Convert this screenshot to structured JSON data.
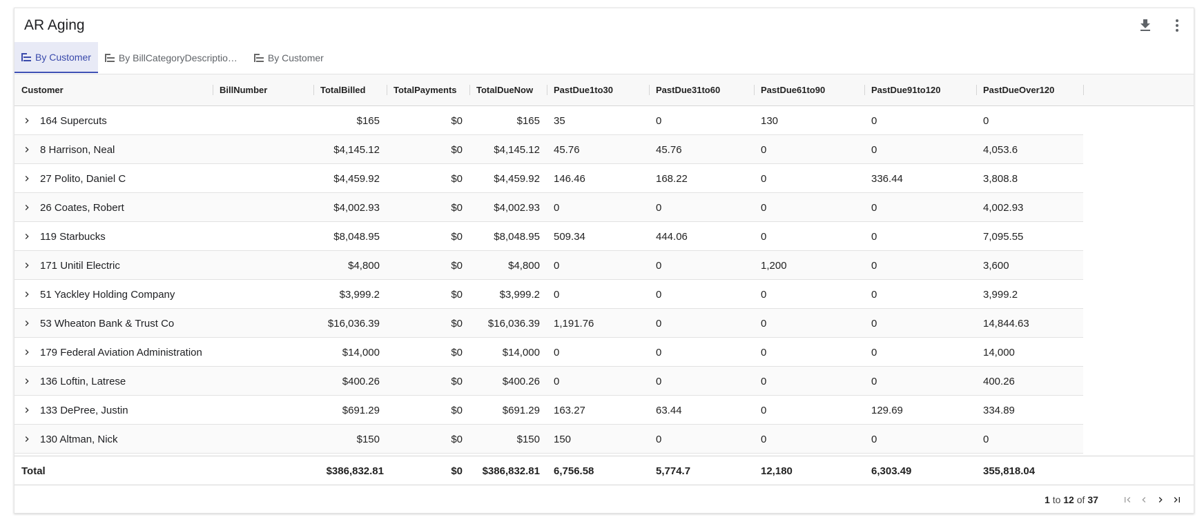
{
  "app": {
    "title": "AR Aging"
  },
  "icons": {
    "download": "download-icon",
    "more": "more-vert-icon",
    "tab": "tree-list-icon",
    "expand": "chevron-right-icon"
  },
  "tabs": [
    {
      "label": "By Customer",
      "active": true
    },
    {
      "label": "By BillCategoryDescription…",
      "active": false
    },
    {
      "label": "By Customer",
      "active": false
    }
  ],
  "columns": [
    "Customer",
    "BillNumber",
    "TotalBilled",
    "TotalPayments",
    "TotalDueNow",
    "PastDue1to30",
    "PastDue31to60",
    "PastDue61to90",
    "PastDue91to120",
    "PastDueOver120"
  ],
  "rows": [
    {
      "customer": "164 Supercuts",
      "billed": "$165",
      "payments": "$0",
      "due_now": "$165",
      "p1_30": "35",
      "p31_60": "0",
      "p61_90": "130",
      "p91_120": "0",
      "over120": "0"
    },
    {
      "customer": "8 Harrison, Neal",
      "billed": "$4,145.12",
      "payments": "$0",
      "due_now": "$4,145.12",
      "p1_30": "45.76",
      "p31_60": "45.76",
      "p61_90": "0",
      "p91_120": "0",
      "over120": "4,053.6"
    },
    {
      "customer": "27 Polito, Daniel C",
      "billed": "$4,459.92",
      "payments": "$0",
      "due_now": "$4,459.92",
      "p1_30": "146.46",
      "p31_60": "168.22",
      "p61_90": "0",
      "p91_120": "336.44",
      "over120": "3,808.8"
    },
    {
      "customer": "26 Coates, Robert",
      "billed": "$4,002.93",
      "payments": "$0",
      "due_now": "$4,002.93",
      "p1_30": "0",
      "p31_60": "0",
      "p61_90": "0",
      "p91_120": "0",
      "over120": "4,002.93"
    },
    {
      "customer": "119 Starbucks",
      "billed": "$8,048.95",
      "payments": "$0",
      "due_now": "$8,048.95",
      "p1_30": "509.34",
      "p31_60": "444.06",
      "p61_90": "0",
      "p91_120": "0",
      "over120": "7,095.55"
    },
    {
      "customer": "171 Unitil Electric",
      "billed": "$4,800",
      "payments": "$0",
      "due_now": "$4,800",
      "p1_30": "0",
      "p31_60": "0",
      "p61_90": "1,200",
      "p91_120": "0",
      "over120": "3,600"
    },
    {
      "customer": "51 Yackley Holding Company",
      "billed": "$3,999.2",
      "payments": "$0",
      "due_now": "$3,999.2",
      "p1_30": "0",
      "p31_60": "0",
      "p61_90": "0",
      "p91_120": "0",
      "over120": "3,999.2"
    },
    {
      "customer": "53 Wheaton Bank & Trust Co",
      "billed": "$16,036.39",
      "payments": "$0",
      "due_now": "$16,036.39",
      "p1_30": "1,191.76",
      "p31_60": "0",
      "p61_90": "0",
      "p91_120": "0",
      "over120": "14,844.63"
    },
    {
      "customer": "179 Federal Aviation Administration",
      "billed": "$14,000",
      "payments": "$0",
      "due_now": "$14,000",
      "p1_30": "0",
      "p31_60": "0",
      "p61_90": "0",
      "p91_120": "0",
      "over120": "14,000"
    },
    {
      "customer": "136 Loftin, Latrese",
      "billed": "$400.26",
      "payments": "$0",
      "due_now": "$400.26",
      "p1_30": "0",
      "p31_60": "0",
      "p61_90": "0",
      "p91_120": "0",
      "over120": "400.26"
    },
    {
      "customer": "133 DePree, Justin",
      "billed": "$691.29",
      "payments": "$0",
      "due_now": "$691.29",
      "p1_30": "163.27",
      "p31_60": "63.44",
      "p61_90": "0",
      "p91_120": "129.69",
      "over120": "334.89"
    },
    {
      "customer": "130 Altman, Nick",
      "billed": "$150",
      "payments": "$0",
      "due_now": "$150",
      "p1_30": "150",
      "p31_60": "0",
      "p61_90": "0",
      "p91_120": "0",
      "over120": "0"
    }
  ],
  "total": {
    "label": "Total",
    "billed": "$386,832.81",
    "payments": "$0",
    "due_now": "$386,832.81",
    "p1_30": "6,756.58",
    "p31_60": "5,774.7",
    "p61_90": "12,180",
    "p91_120": "6,303.49",
    "over120": "355,818.04"
  },
  "pagination": {
    "from": "1",
    "to_word": "to",
    "to": "12",
    "of_word": "of",
    "total": "37"
  }
}
